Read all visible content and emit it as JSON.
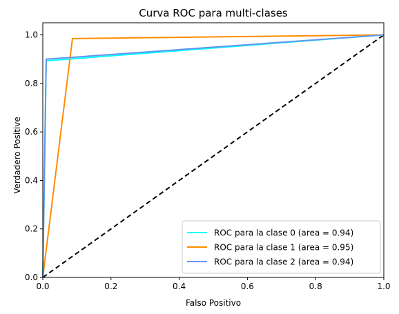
{
  "chart_data": {
    "type": "line",
    "title": "Curva ROC para multi-clases",
    "xlabel": "Falso Positivo",
    "ylabel": "Verdadero Positive",
    "xlim": [
      0.0,
      1.0
    ],
    "ylim": [
      0.0,
      1.05
    ],
    "x_ticks": [
      "0.0",
      "0.2",
      "0.4",
      "0.6",
      "0.8",
      "1.0"
    ],
    "y_ticks": [
      "0.0",
      "0.2",
      "0.4",
      "0.6",
      "0.8",
      "1.0"
    ],
    "grid": false,
    "legend_position": "lower-right",
    "series": [
      {
        "name": "ROC para la clase 0 (area = 0.94)",
        "color": "#00ffff",
        "x": [
          0.0,
          0.01,
          1.0
        ],
        "y": [
          0.0,
          0.893,
          1.0
        ]
      },
      {
        "name": "ROC para la clase 1 (area = 0.95)",
        "color": "#ff8c00",
        "x": [
          0.0,
          0.087,
          1.0
        ],
        "y": [
          0.0,
          0.985,
          1.0
        ]
      },
      {
        "name": "ROC para la clase 2 (area = 0.94)",
        "color": "#6495ed",
        "x": [
          0.0,
          0.01,
          1.0
        ],
        "y": [
          0.0,
          0.9,
          1.0
        ]
      }
    ],
    "reference_line": {
      "x": [
        0.0,
        1.0
      ],
      "y": [
        0.0,
        1.0
      ],
      "color": "#000000",
      "style": "dashed"
    }
  }
}
